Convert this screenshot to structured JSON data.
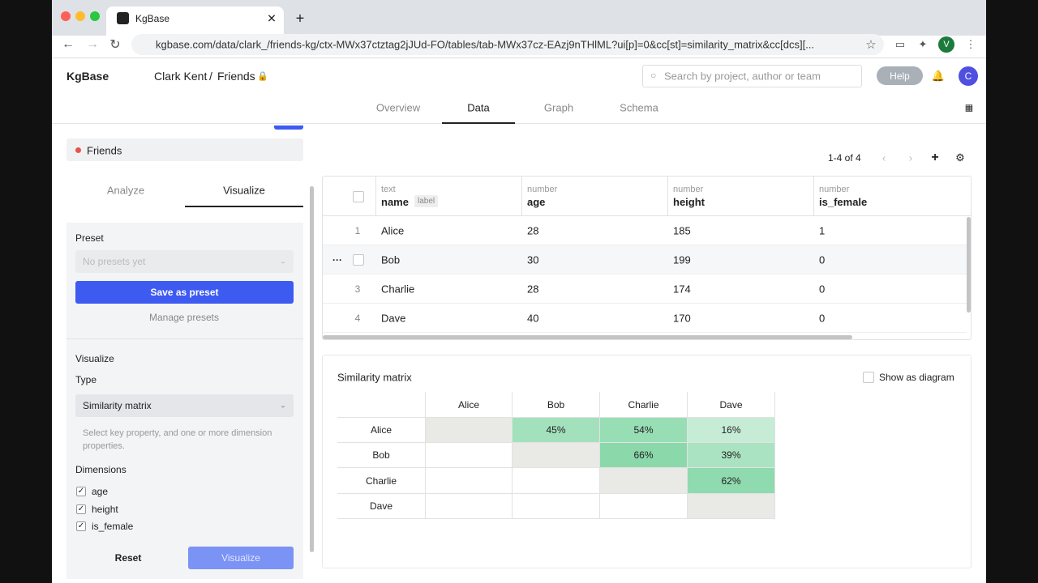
{
  "browser": {
    "tab_title": "KgBase",
    "url": "kgbase.com/data/clark_/friends-kg/ctx-MWx37ctztag2jJUd-FO/tables/tab-MWx37cz-EAzj9nTHlML?ui[p]=0&cc[st]=similarity_matrix&cc[dcs][...",
    "profile": "V"
  },
  "header": {
    "logo": "KgBase",
    "user": "Clark Kent",
    "separator": "/",
    "project": "Friends",
    "search_placeholder": "Search by project, author or team",
    "help": "Help",
    "avatar": "C"
  },
  "nav": {
    "tabs": [
      "Overview",
      "Data",
      "Graph",
      "Schema"
    ]
  },
  "sidebar": {
    "table_name": "Friends",
    "tabs": [
      "Analyze",
      "Visualize"
    ],
    "preset_label": "Preset",
    "preset_placeholder": "No presets yet",
    "save_preset": "Save as preset",
    "manage_presets": "Manage presets",
    "visualize_heading": "Visualize",
    "type_label": "Type",
    "type_value": "Similarity matrix",
    "help_text": "Select key property, and one or more dimension properties.",
    "dimensions_label": "Dimensions",
    "dimensions": [
      "age",
      "height",
      "is_female"
    ],
    "reset": "Reset",
    "visualize_button": "Visualize"
  },
  "table": {
    "pagination": "1-4 of 4",
    "columns": [
      {
        "type": "text",
        "name": "name",
        "badge": "label"
      },
      {
        "type": "number",
        "name": "age"
      },
      {
        "type": "number",
        "name": "height"
      },
      {
        "type": "number",
        "name": "is_female"
      }
    ],
    "rows": [
      {
        "index": 1,
        "cells": [
          "Alice",
          28,
          185,
          1
        ]
      },
      {
        "cells": [
          "Bob",
          30,
          199,
          0
        ]
      },
      {
        "index": 3,
        "cells": [
          "Charlie",
          28,
          174,
          0
        ]
      },
      {
        "index": 4,
        "cells": [
          "Dave",
          40,
          170,
          0
        ]
      }
    ]
  },
  "similarity": {
    "title": "Similarity matrix",
    "show_as_diagram": "Show as diagram",
    "labels": [
      "Alice",
      "Bob",
      "Charlie",
      "Dave"
    ],
    "cells": [
      [
        null,
        "45%",
        "54%",
        "16%"
      ],
      [
        null,
        null,
        "66%",
        "39%"
      ],
      [
        null,
        null,
        null,
        "62%"
      ],
      [
        null,
        null,
        null,
        null
      ]
    ]
  }
}
